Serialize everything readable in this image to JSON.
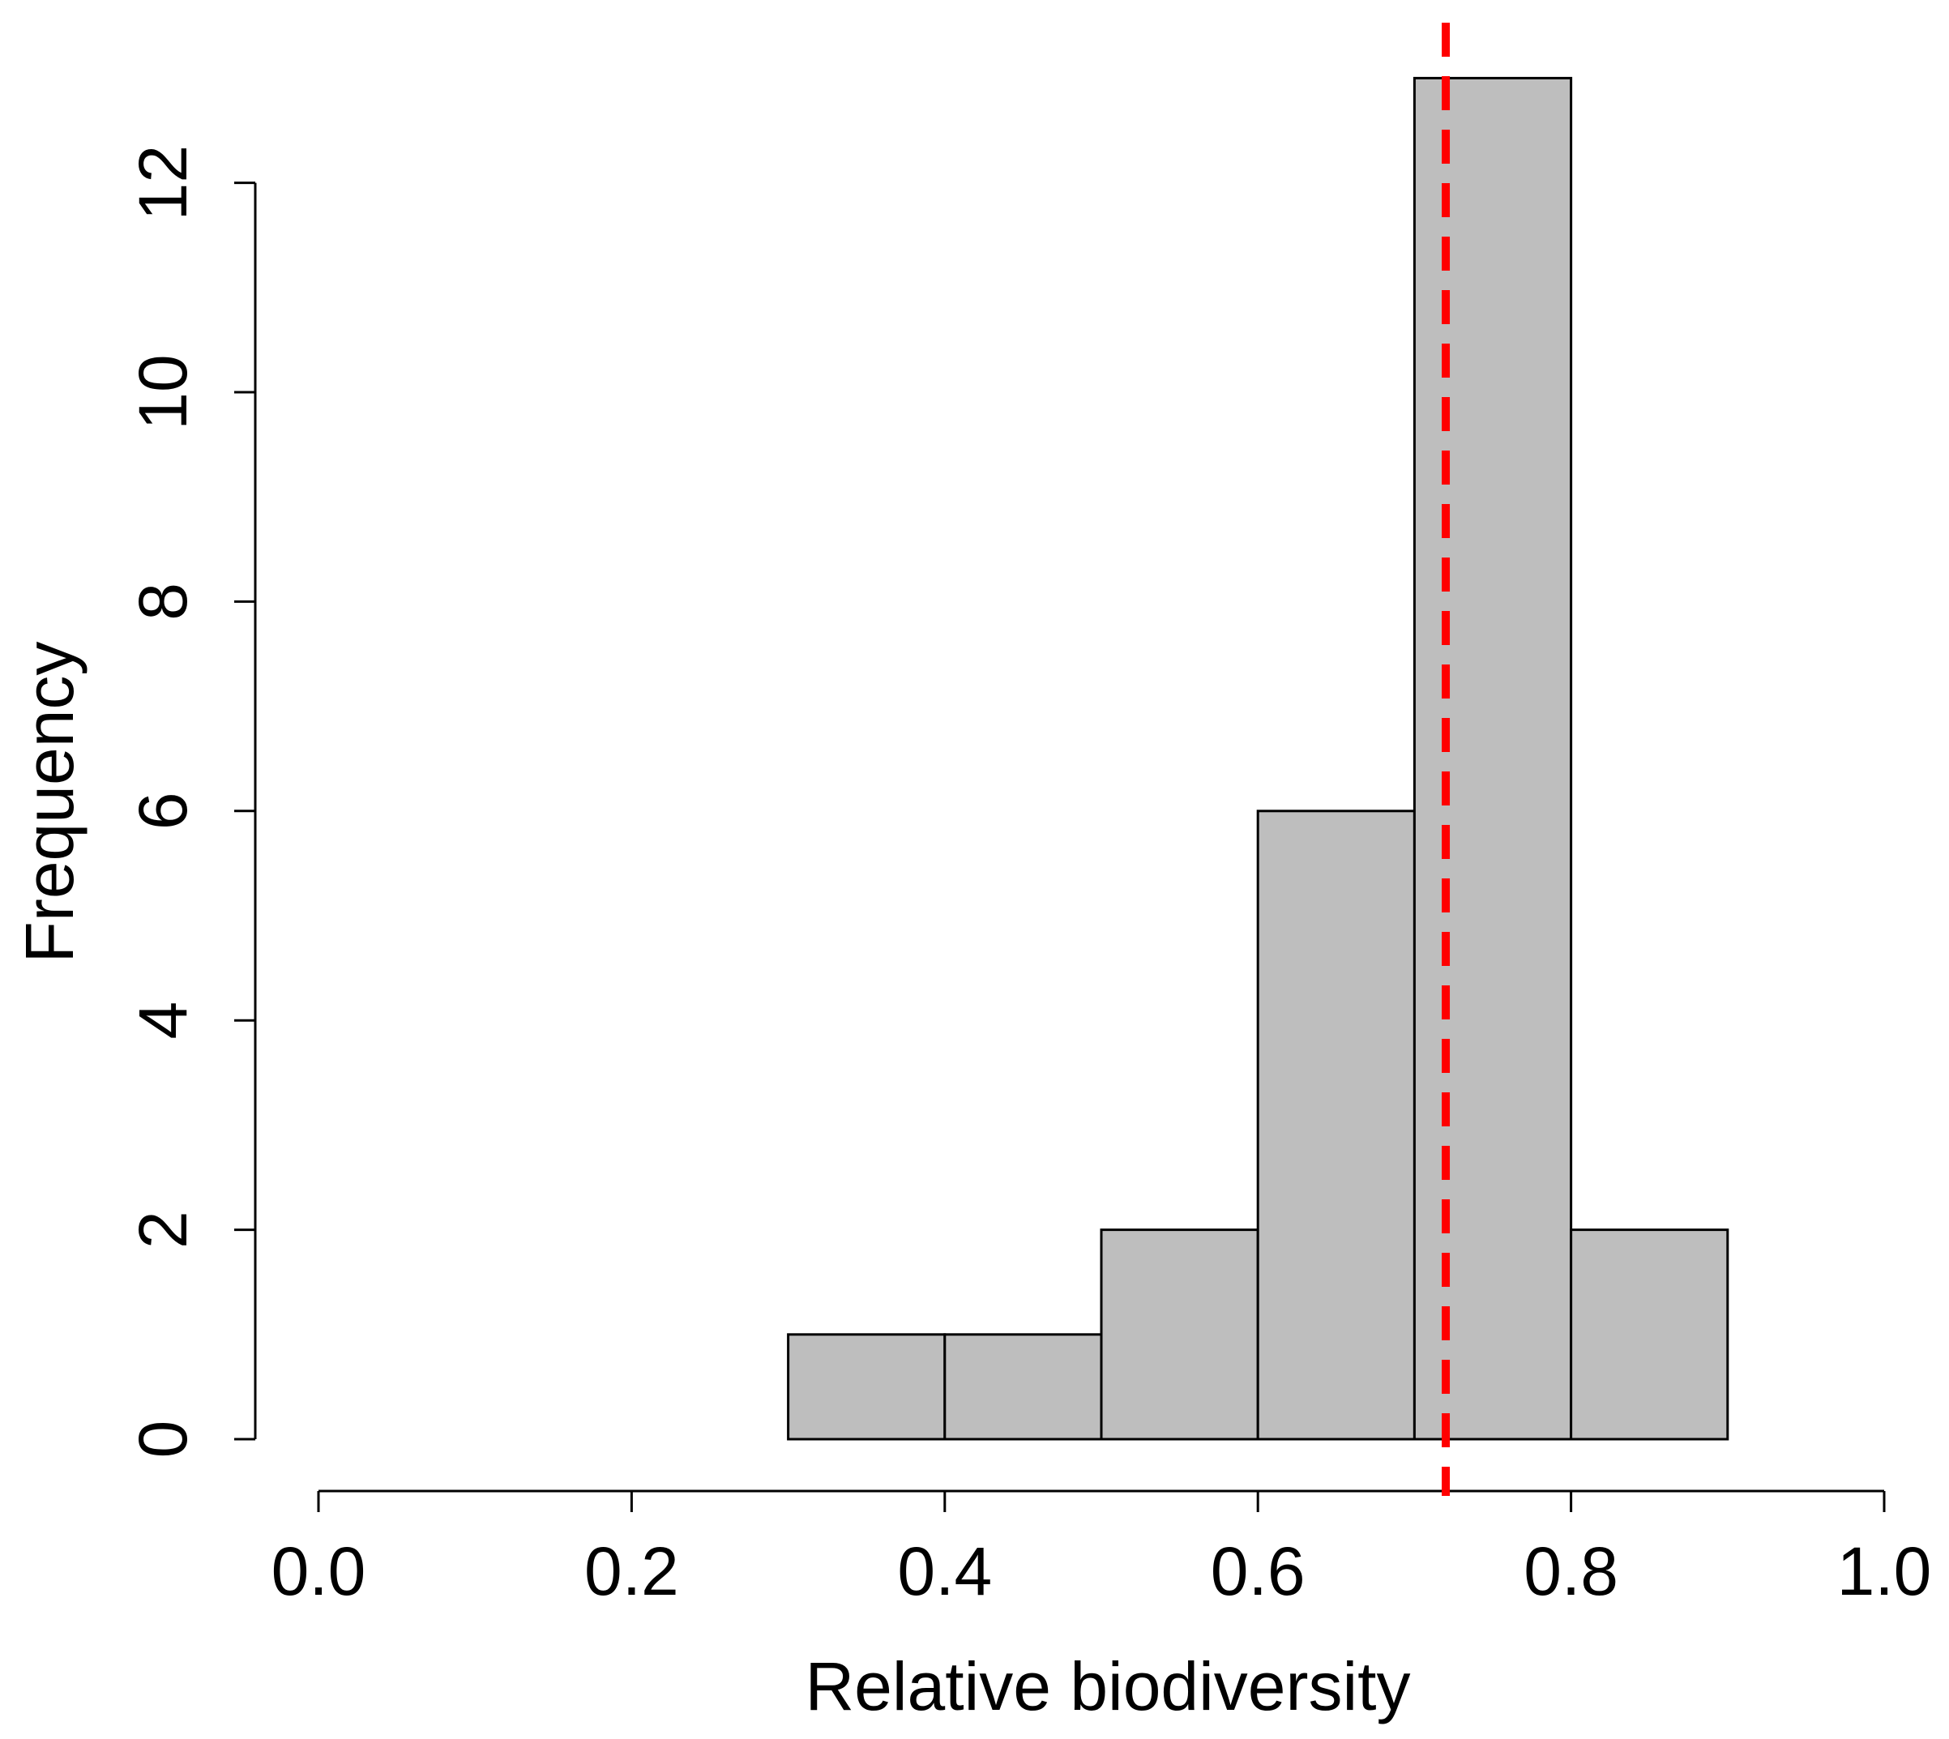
{
  "chart_data": {
    "type": "bar",
    "subtype": "histogram",
    "bins": [
      {
        "start": 0.3,
        "end": 0.4,
        "count": 1
      },
      {
        "start": 0.4,
        "end": 0.5,
        "count": 1
      },
      {
        "start": 0.5,
        "end": 0.6,
        "count": 2
      },
      {
        "start": 0.6,
        "end": 0.7,
        "count": 6
      },
      {
        "start": 0.7,
        "end": 0.8,
        "count": 13
      },
      {
        "start": 0.8,
        "end": 0.9,
        "count": 2
      }
    ],
    "title": "",
    "xlabel": "Relative biodiversity",
    "ylabel": "Frequency",
    "xlim": [
      0.0,
      1.0
    ],
    "ylim": [
      0,
      13
    ],
    "xticks": [
      "0.0",
      "0.2",
      "0.4",
      "0.6",
      "0.8",
      "1.0"
    ],
    "yticks": [
      "0",
      "2",
      "4",
      "6",
      "8",
      "10",
      "12"
    ],
    "reference_line": {
      "x": 0.72,
      "style": "dashed",
      "color": "#ff0000"
    },
    "bar_color": "#bebebe",
    "edge_color": "#000000",
    "grid": false,
    "legend": "none"
  }
}
